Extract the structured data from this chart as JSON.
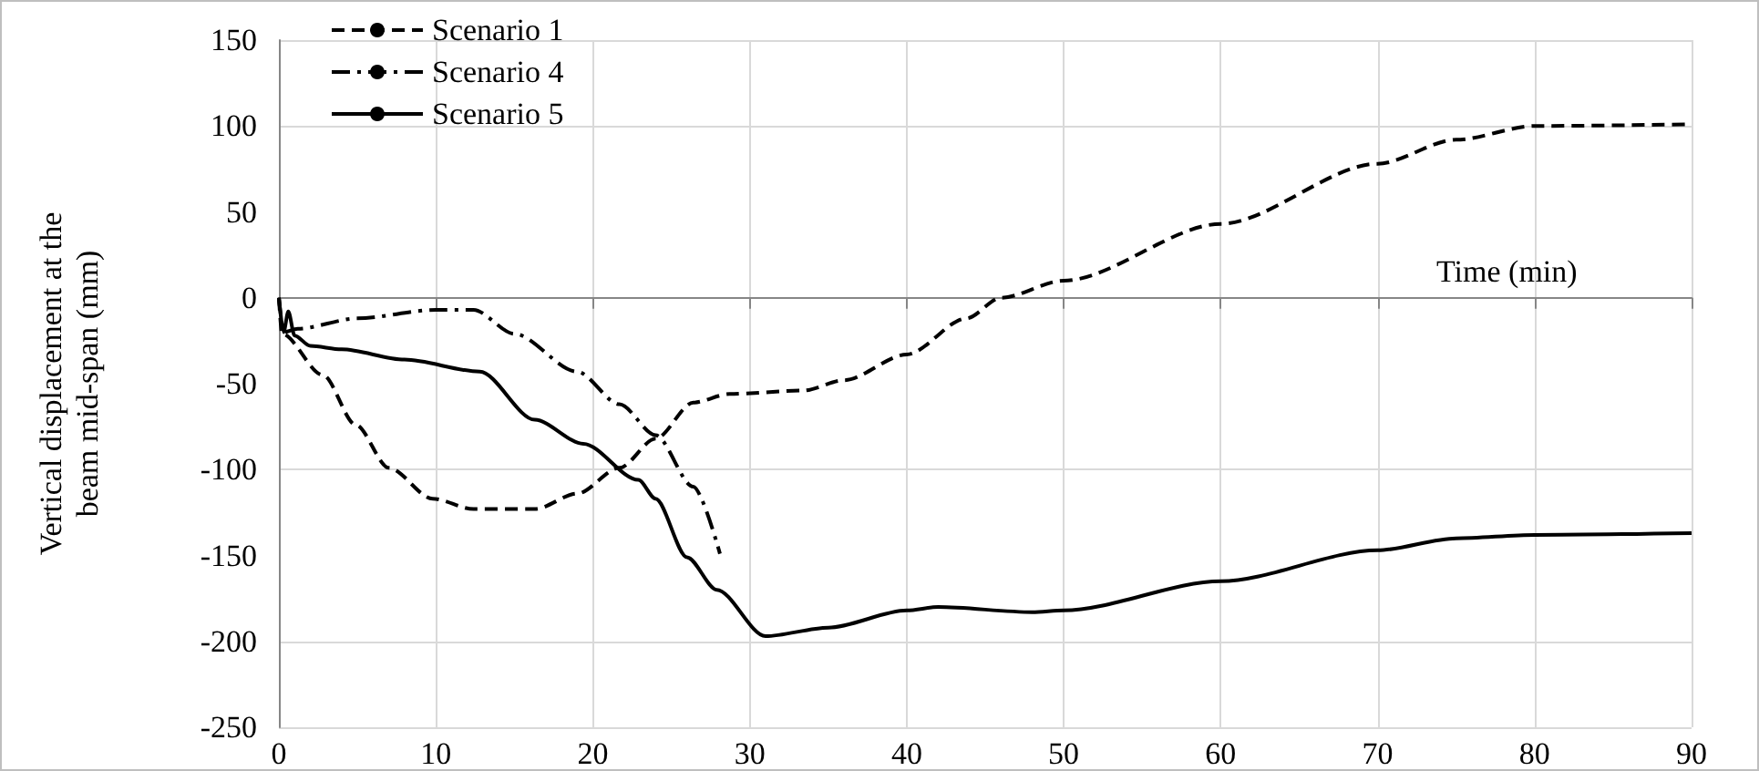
{
  "chart_data": {
    "type": "line",
    "xlabel": "Time (min)",
    "ylabel": "Vertical displacement at the\nbeam mid-span (mm)",
    "xlim": [
      0,
      90
    ],
    "xticks": [
      0,
      10,
      20,
      30,
      40,
      50,
      60,
      70,
      80,
      90
    ],
    "ylim": [
      -250,
      150
    ],
    "yticks": [
      -250,
      -200,
      -150,
      -100,
      -50,
      0,
      50,
      100,
      150
    ],
    "grid": true,
    "legend": "top left",
    "marker": "none",
    "series": [
      {
        "name": "Scenario 1",
        "color": "#000000",
        "line_style": "dashed",
        "x": [
          0,
          0.2,
          2.8,
          4.9,
          7,
          9.8,
          12.4,
          16.3,
          19,
          21.7,
          24,
          26.4,
          28.7,
          33.4,
          36,
          40,
          43.8,
          46,
          50,
          60,
          70,
          75,
          80,
          90
        ],
        "values": [
          0,
          -21,
          -45,
          -74,
          -99,
          -117,
          -123,
          -123,
          -114,
          -99,
          -82,
          -61,
          -56,
          -54,
          -48,
          -33,
          -12,
          0,
          10,
          43,
          78,
          92,
          100,
          101
        ]
      },
      {
        "name": "Scenario 4",
        "color": "#000000",
        "line_style": "dashdot",
        "x": [
          0,
          0.3,
          1.2,
          5,
          10,
          12.4,
          15,
          19,
          21.7,
          24,
          26.4,
          28.1
        ],
        "values": [
          0,
          -20,
          -18,
          -12,
          -7,
          -7,
          -21,
          -43,
          -62,
          -80,
          -110,
          -149
        ]
      },
      {
        "name": "Scenario 5",
        "color": "#000000",
        "line_style": "solid",
        "x": [
          0,
          0.3,
          0.6,
          1,
          2,
          4,
          8,
          12.8,
          16.3,
          19.4,
          22.9,
          24,
          26,
          27.9,
          31,
          35,
          40,
          42,
          48,
          50,
          60,
          70,
          75,
          80,
          90
        ],
        "values": [
          0,
          -20,
          -8,
          -22,
          -28,
          -30,
          -36,
          -43,
          -71,
          -85,
          -106,
          -117,
          -151,
          -170,
          -197,
          -192,
          -182,
          -180,
          -183,
          -182,
          -165,
          -147,
          -140,
          -138,
          -137
        ]
      }
    ]
  }
}
